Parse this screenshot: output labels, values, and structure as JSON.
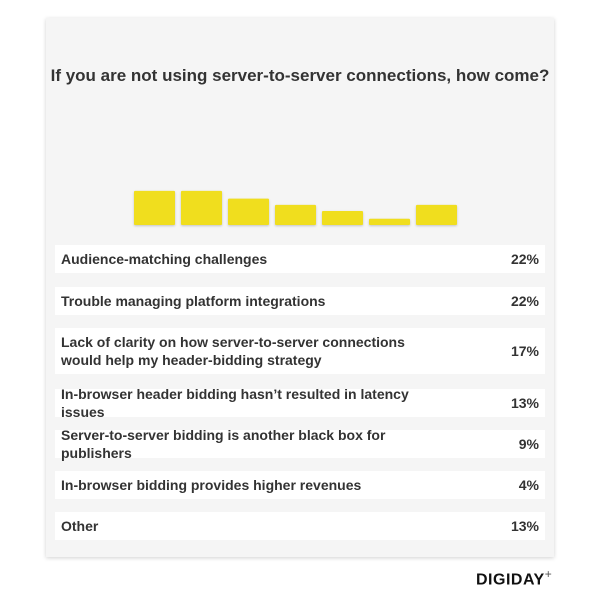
{
  "chart_data": {
    "type": "bar",
    "title": "If you are not using server-to-server connections, how come?",
    "categories": [
      "Audience-matching challenges",
      "Trouble managing platform integrations",
      "Lack of clarity on how server-to-server connections would help my header-bidding strategy",
      "In-browser header bidding hasn’t resulted in latency issues",
      "Server-to-server bidding is another black box for publishers",
      "In-browser bidding provides higher revenues",
      "Other"
    ],
    "values": [
      22,
      22,
      17,
      13,
      9,
      4,
      13
    ],
    "labels": [
      "22%",
      "22%",
      "17%",
      "13%",
      "9%",
      "4%",
      "13%"
    ],
    "bar_color": "#f0de1e",
    "grid": false
  },
  "brand": "DIGIDAY",
  "brand_plus": "+"
}
